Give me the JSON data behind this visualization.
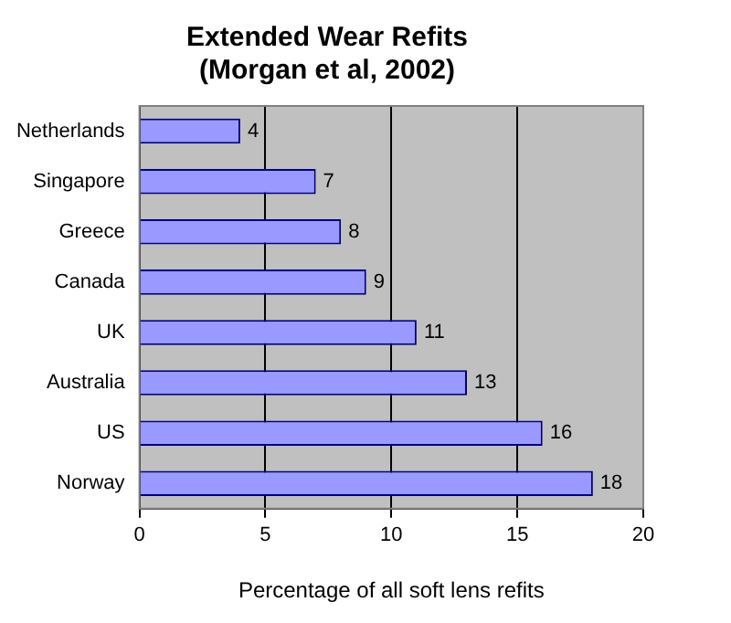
{
  "chart_data": {
    "type": "bar",
    "orientation": "horizontal",
    "title": "Extended Wear Refits\n(Morgan et al, 2002)",
    "xlabel": "Percentage of all soft lens refits",
    "categories": [
      "Netherlands",
      "Singapore",
      "Greece",
      "Canada",
      "UK",
      "Australia",
      "US",
      "Norway"
    ],
    "values": [
      4,
      7,
      8,
      9,
      11,
      13,
      16,
      18
    ],
    "color": "#9999ff",
    "xlim": [
      0,
      20
    ],
    "xticks": [
      0,
      5,
      10,
      15,
      20
    ],
    "grid": "x",
    "data_labels": true,
    "legend": false
  }
}
